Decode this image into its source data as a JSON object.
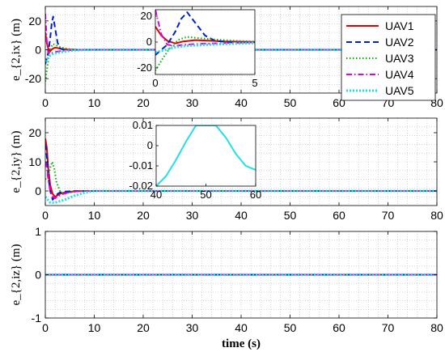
{
  "chart_data": [
    {
      "type": "line",
      "ylabel": "e_{2,ix} (m)",
      "xlabel": "",
      "xlim": [
        0,
        80
      ],
      "ylim": [
        -30,
        30
      ],
      "xticks": [
        0,
        10,
        20,
        30,
        40,
        50,
        60,
        70,
        80
      ],
      "yticks": [
        20,
        0,
        -20
      ],
      "grid": true,
      "legend_position": "top-right",
      "series": [
        {
          "name": "UAV1",
          "color": "#e00000",
          "dash": "solid",
          "x": [
            0,
            0.3,
            0.6,
            1,
            1.4,
            2,
            2.8,
            3.5,
            4.5,
            6,
            8,
            80
          ],
          "y": [
            12,
            5,
            1,
            -1,
            0.5,
            1.5,
            1,
            0.5,
            0.2,
            0.05,
            0,
            0
          ]
        },
        {
          "name": "UAV2",
          "color": "#0020c8",
          "dash": "dashed",
          "x": [
            0,
            0.3,
            0.6,
            1,
            1.3,
            1.6,
            2,
            2.5,
            3,
            4,
            5,
            7,
            80
          ],
          "y": [
            -10,
            -6,
            -2,
            8,
            18,
            23,
            15,
            5,
            1,
            -0.5,
            -0.2,
            0,
            0
          ]
        },
        {
          "name": "UAV3",
          "color": "#00b400",
          "dash": "dotted",
          "x": [
            0,
            0.4,
            0.8,
            1.2,
            1.6,
            2.2,
            3,
            4,
            5,
            7,
            80
          ],
          "y": [
            -22,
            -12,
            -3,
            2,
            4,
            3,
            2,
            1,
            0.4,
            0.1,
            0
          ]
        },
        {
          "name": "UAV4",
          "color": "#e000e0",
          "dash": "dashdot",
          "x": [
            0,
            0.3,
            0.6,
            1,
            1.5,
            2,
            3,
            4,
            5,
            7,
            80
          ],
          "y": [
            25,
            6,
            -2,
            -3,
            -2,
            -1.5,
            -1,
            -0.5,
            -0.2,
            0,
            0
          ]
        },
        {
          "name": "UAV5",
          "color": "#1ee0e8",
          "dash": "dotted-thick",
          "x": [
            0,
            0.5,
            1,
            1.5,
            2,
            3,
            4,
            5,
            6,
            8,
            10,
            80
          ],
          "y": [
            -8,
            -6,
            -4,
            -3,
            -2.5,
            -1.8,
            -1.2,
            -0.7,
            -0.4,
            -0.1,
            0,
            0
          ]
        }
      ],
      "inset": {
        "xlim": [
          0,
          5
        ],
        "ylim": [
          -25,
          25
        ],
        "xticks": [
          0,
          5
        ],
        "yticks": [
          20,
          0,
          -20
        ]
      }
    },
    {
      "type": "line",
      "ylabel": "e_{2,iy} (m)",
      "xlabel": "",
      "xlim": [
        0,
        80
      ],
      "ylim": [
        -5,
        25
      ],
      "xticks": [
        0,
        10,
        20,
        30,
        40,
        50,
        60,
        70,
        80
      ],
      "yticks": [
        20,
        10,
        0
      ],
      "grid": true,
      "series": [
        {
          "name": "UAV1",
          "color": "#e00000",
          "dash": "solid",
          "x": [
            0,
            0.3,
            0.6,
            1,
            1.5,
            2,
            3,
            4,
            6,
            8,
            80
          ],
          "y": [
            18,
            15,
            8,
            2,
            -1,
            -2,
            -1,
            -0.5,
            -0.1,
            0,
            0
          ]
        },
        {
          "name": "UAV2",
          "color": "#0020c8",
          "dash": "dashed",
          "x": [
            0,
            0.3,
            0.6,
            1,
            1.5,
            2,
            2.5,
            3,
            4,
            6,
            80
          ],
          "y": [
            16,
            12,
            5,
            0,
            -3,
            -2,
            -1,
            -0.5,
            -0.2,
            0,
            0
          ]
        },
        {
          "name": "UAV3",
          "color": "#00b400",
          "dash": "dotted",
          "x": [
            0,
            0.5,
            1,
            1.4,
            1.8,
            2.3,
            3,
            4,
            5,
            7,
            80
          ],
          "y": [
            4,
            5,
            8,
            10,
            8,
            3,
            0,
            -1,
            -0.5,
            0,
            0
          ]
        },
        {
          "name": "UAV4",
          "color": "#e000e0",
          "dash": "dashdot",
          "x": [
            0,
            0.3,
            0.6,
            1,
            1.5,
            2,
            3,
            4,
            6,
            8,
            80
          ],
          "y": [
            10,
            8,
            4,
            0,
            -2,
            -2.5,
            -1.5,
            -0.8,
            -0.2,
            0,
            0
          ]
        },
        {
          "name": "UAV5",
          "color": "#1ee0e8",
          "dash": "dotted-thick",
          "x": [
            0,
            0.5,
            1,
            2,
            3,
            4,
            5,
            6,
            8,
            10,
            80
          ],
          "y": [
            -2,
            -3,
            -4,
            -4,
            -3.5,
            -3,
            -2.3,
            -1.6,
            -0.6,
            0,
            0
          ]
        }
      ],
      "inset": {
        "xlim": [
          40,
          60
        ],
        "ylim": [
          -0.02,
          0.01
        ],
        "xticks": [
          40,
          50,
          60
        ],
        "yticks": [
          0.01,
          0,
          -0.01,
          -0.02
        ],
        "series": [
          {
            "name": "UAV5",
            "color": "#1ee0e8",
            "x": [
              40,
              42,
              44,
              46,
              48,
              50,
              52,
              54,
              56,
              58,
              60
            ],
            "y": [
              -0.02,
              -0.015,
              -0.007,
              0.002,
              0.01,
              0.01,
              0.01,
              0.004,
              -0.004,
              -0.01,
              -0.012
            ]
          }
        ]
      }
    },
    {
      "type": "line",
      "ylabel": "e_{2,iz} (m)",
      "xlabel": "time (s)",
      "xlim": [
        0,
        80
      ],
      "ylim": [
        -1,
        1
      ],
      "xticks": [
        0,
        10,
        20,
        30,
        40,
        50,
        60,
        70,
        80
      ],
      "yticks": [
        1,
        0,
        -1
      ],
      "grid": true,
      "series": [
        {
          "name": "UAV1",
          "color": "#e00000",
          "dash": "solid",
          "x": [
            0,
            80
          ],
          "y": [
            0,
            0
          ]
        },
        {
          "name": "UAV2",
          "color": "#0020c8",
          "dash": "dashed",
          "x": [
            0,
            80
          ],
          "y": [
            0,
            0
          ]
        },
        {
          "name": "UAV3",
          "color": "#00b400",
          "dash": "dotted",
          "x": [
            0,
            80
          ],
          "y": [
            0,
            0
          ]
        },
        {
          "name": "UAV4",
          "color": "#e000e0",
          "dash": "dashdot",
          "x": [
            0,
            80
          ],
          "y": [
            0,
            0
          ]
        },
        {
          "name": "UAV5",
          "color": "#1ee0e8",
          "dash": "dotted-thick",
          "x": [
            0,
            80
          ],
          "y": [
            0,
            0
          ]
        }
      ]
    }
  ]
}
